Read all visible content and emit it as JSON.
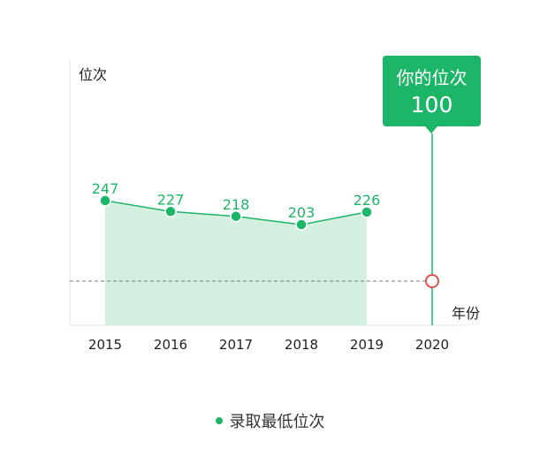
{
  "chart_data": {
    "type": "line",
    "y_axis_label": "位次",
    "x_axis_label": "年份",
    "categories": [
      "2015",
      "2016",
      "2017",
      "2018",
      "2019",
      "2020"
    ],
    "series": [
      {
        "name": "录取最低位次",
        "x": [
          "2015",
          "2016",
          "2017",
          "2018",
          "2019"
        ],
        "values": [
          247,
          227,
          218,
          203,
          226
        ],
        "labels": [
          "247",
          "227",
          "218",
          "203",
          "226"
        ]
      }
    ],
    "user_rank": {
      "title": "你的位次",
      "value": 100,
      "value_label": "100",
      "year": "2020"
    },
    "y_axis_scale": "reversed (smaller rank plotted higher)",
    "area_fill": true,
    "legend": {
      "position": "bottom-center",
      "label": "录取最低位次"
    },
    "grid": false,
    "colors": {
      "line": "#1db567",
      "area": "#d4f0e0",
      "marker": "#1db567",
      "user_marker": "#d9534f",
      "dashed_line": "#777777",
      "callout_bg": "#1db567",
      "axis": "#dddddd"
    }
  }
}
